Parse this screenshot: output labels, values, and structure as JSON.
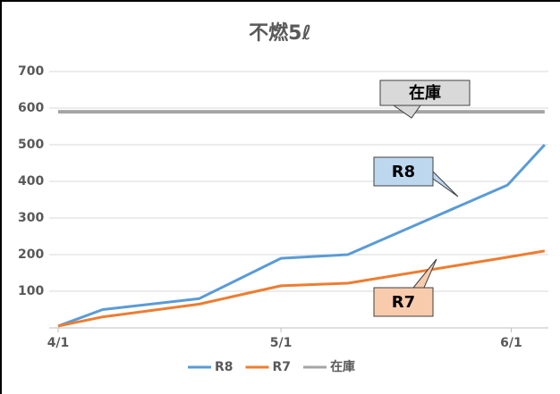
{
  "chart_data": {
    "type": "line",
    "title": "不燃5ℓ",
    "x": [
      0,
      6,
      19,
      30,
      39,
      60.5,
      65.5
    ],
    "xlim": [
      0,
      66
    ],
    "xticks": [
      {
        "value": 0,
        "label": "4/1"
      },
      {
        "value": 30,
        "label": "5/1"
      },
      {
        "value": 61,
        "label": "6/1"
      }
    ],
    "ylim": [
      0,
      750
    ],
    "yticks": [
      100,
      200,
      300,
      400,
      500,
      600,
      700
    ],
    "grid": true,
    "legend": "bottom",
    "series": [
      {
        "name": "R8",
        "color": "#5b9bd5",
        "values": [
          5,
          50,
          80,
          190,
          200,
          390,
          500
        ]
      },
      {
        "name": "R7",
        "color": "#ed7d31",
        "values": [
          5,
          30,
          65,
          115,
          122,
          193,
          210
        ]
      },
      {
        "name": "在庫",
        "color": "#a5a5a5",
        "values": [
          590,
          590,
          590,
          590,
          590,
          590,
          590
        ]
      }
    ],
    "annotations": [
      "在庫",
      "R8",
      "R7"
    ]
  }
}
